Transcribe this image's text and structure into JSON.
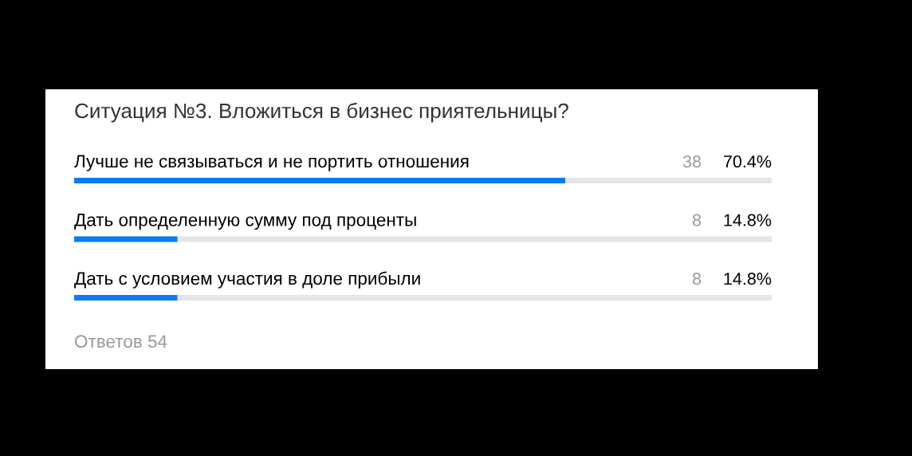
{
  "chart_data": {
    "type": "bar",
    "orientation": "horizontal",
    "title": "Ситуация №3. Вложиться в бизнес приятельницы?",
    "categories": [
      "Лучше не связываться и не портить отношения",
      "Дать определенную сумму под проценты",
      "Дать с условием участия в доле прибыли"
    ],
    "values": [
      70.4,
      14.8,
      14.8
    ],
    "color": "#0a7cf0",
    "value_labels": [
      "70.4%",
      "14.8%",
      "14.8%"
    ],
    "xlim": [
      0,
      100
    ],
    "tick_labels": false,
    "annotations": [
      "38",
      "8",
      "8",
      "Ответов 54"
    ]
  }
}
